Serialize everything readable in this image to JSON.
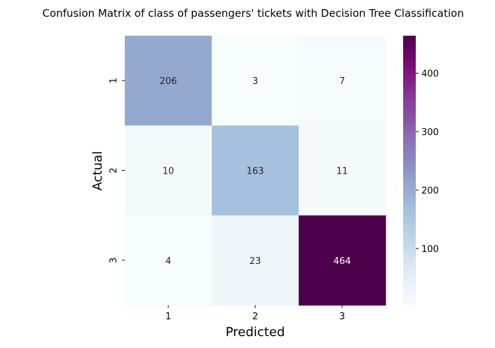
{
  "chart_data": {
    "type": "heatmap",
    "title": "Confusion Matrix of class of passengers' tickets with Decision Tree Classification",
    "xlabel": "Predicted",
    "ylabel": "Actual",
    "x_categories": [
      "1",
      "2",
      "3"
    ],
    "y_categories": [
      "1",
      "2",
      "3"
    ],
    "values": [
      [
        206,
        3,
        7
      ],
      [
        10,
        163,
        11
      ],
      [
        4,
        23,
        464
      ]
    ],
    "colormap": "BuPu",
    "color_range": [
      3,
      464
    ],
    "colorbar_ticks": [
      "100",
      "200",
      "300",
      "400"
    ],
    "colorbar_tick_values": [
      100,
      200,
      300,
      400
    ],
    "grid": false,
    "legend": "colorbar-right"
  }
}
